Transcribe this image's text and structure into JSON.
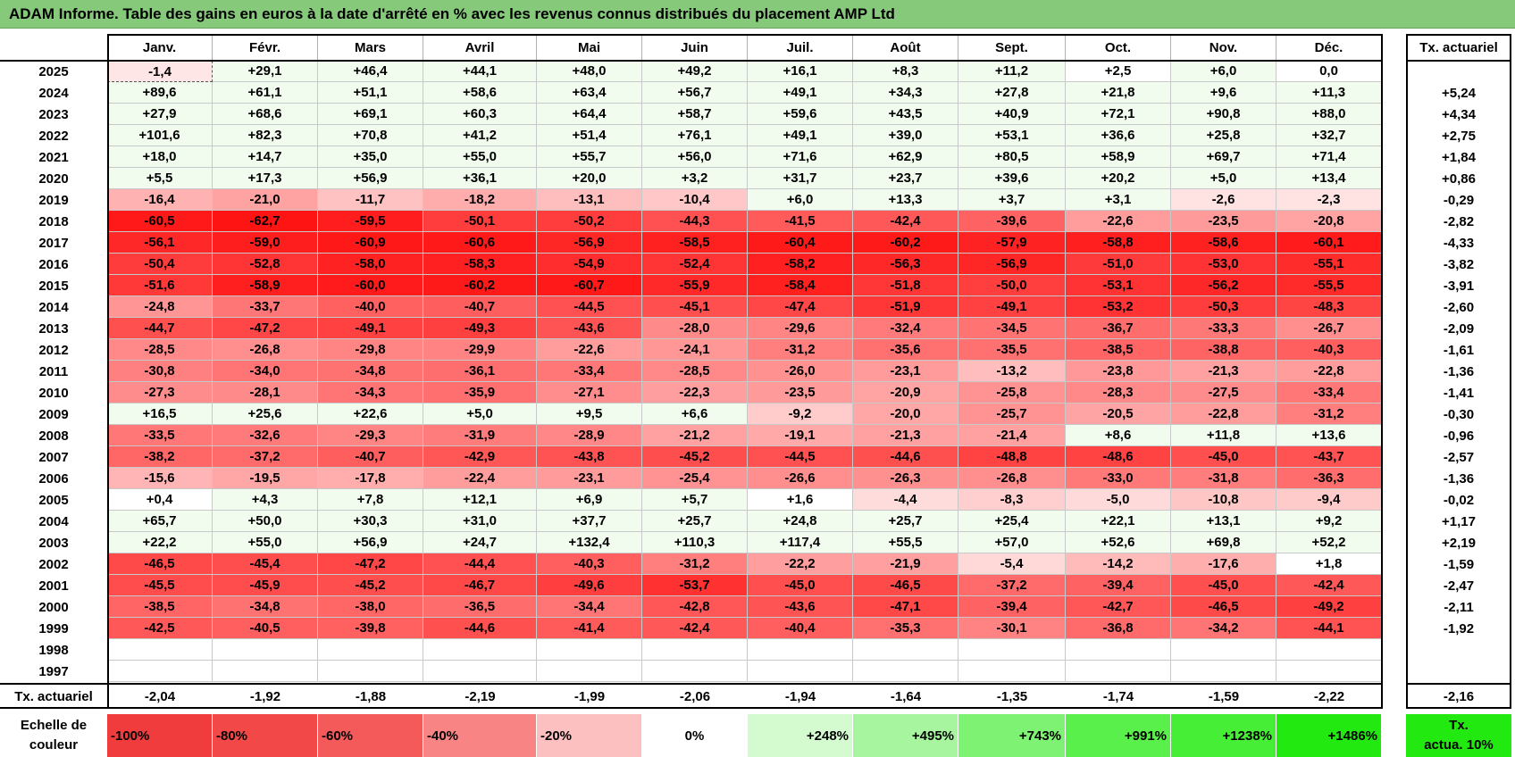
{
  "title": "ADAM Informe. Table des gains en euros à la date d'arrêté en % avec les revenus connus distribués du placement AMP Ltd",
  "months": [
    "Janv.",
    "Févr.",
    "Mars",
    "Avril",
    "Mai",
    "Juin",
    "Juil.",
    "Août",
    "Sept.",
    "Oct.",
    "Nov.",
    "Déc."
  ],
  "annual_header": "Tx. actuariel",
  "rows": [
    {
      "year": "2025",
      "values": [
        "-1,4",
        "+29,1",
        "+46,4",
        "+44,1",
        "+48,0",
        "+49,2",
        "+16,1",
        "+8,3",
        "+11,2",
        "+2,5",
        "+6,0",
        "0,0"
      ],
      "annual": ""
    },
    {
      "year": "2024",
      "values": [
        "+89,6",
        "+61,1",
        "+51,1",
        "+58,6",
        "+63,4",
        "+56,7",
        "+49,1",
        "+34,3",
        "+27,8",
        "+21,8",
        "+9,6",
        "+11,3"
      ],
      "annual": "+5,24"
    },
    {
      "year": "2023",
      "values": [
        "+27,9",
        "+68,6",
        "+69,1",
        "+60,3",
        "+64,4",
        "+58,7",
        "+59,6",
        "+43,5",
        "+40,9",
        "+72,1",
        "+90,8",
        "+88,0"
      ],
      "annual": "+4,34"
    },
    {
      "year": "2022",
      "values": [
        "+101,6",
        "+82,3",
        "+70,8",
        "+41,2",
        "+51,4",
        "+76,1",
        "+49,1",
        "+39,0",
        "+53,1",
        "+36,6",
        "+25,8",
        "+32,7"
      ],
      "annual": "+2,75"
    },
    {
      "year": "2021",
      "values": [
        "+18,0",
        "+14,7",
        "+35,0",
        "+55,0",
        "+55,7",
        "+56,0",
        "+71,6",
        "+62,9",
        "+80,5",
        "+58,9",
        "+69,7",
        "+71,4"
      ],
      "annual": "+1,84"
    },
    {
      "year": "2020",
      "values": [
        "+5,5",
        "+17,3",
        "+56,9",
        "+36,1",
        "+20,0",
        "+3,2",
        "+31,7",
        "+23,7",
        "+39,6",
        "+20,2",
        "+5,0",
        "+13,4"
      ],
      "annual": "+0,86"
    },
    {
      "year": "2019",
      "values": [
        "-16,4",
        "-21,0",
        "-11,7",
        "-18,2",
        "-13,1",
        "-10,4",
        "+6,0",
        "+13,3",
        "+3,7",
        "+3,1",
        "-2,6",
        "-2,3"
      ],
      "annual": "-0,29"
    },
    {
      "year": "2018",
      "values": [
        "-60,5",
        "-62,7",
        "-59,5",
        "-50,1",
        "-50,2",
        "-44,3",
        "-41,5",
        "-42,4",
        "-39,6",
        "-22,6",
        "-23,5",
        "-20,8"
      ],
      "annual": "-2,82"
    },
    {
      "year": "2017",
      "values": [
        "-56,1",
        "-59,0",
        "-60,9",
        "-60,6",
        "-56,9",
        "-58,5",
        "-60,4",
        "-60,2",
        "-57,9",
        "-58,8",
        "-58,6",
        "-60,1"
      ],
      "annual": "-4,33"
    },
    {
      "year": "2016",
      "values": [
        "-50,4",
        "-52,8",
        "-58,0",
        "-58,3",
        "-54,9",
        "-52,4",
        "-58,2",
        "-56,3",
        "-56,9",
        "-51,0",
        "-53,0",
        "-55,1"
      ],
      "annual": "-3,82"
    },
    {
      "year": "2015",
      "values": [
        "-51,6",
        "-58,9",
        "-60,0",
        "-60,2",
        "-60,7",
        "-55,9",
        "-58,4",
        "-51,8",
        "-50,0",
        "-53,1",
        "-56,2",
        "-55,5"
      ],
      "annual": "-3,91"
    },
    {
      "year": "2014",
      "values": [
        "-24,8",
        "-33,7",
        "-40,0",
        "-40,7",
        "-44,5",
        "-45,1",
        "-47,4",
        "-51,9",
        "-49,1",
        "-53,2",
        "-50,3",
        "-48,3"
      ],
      "annual": "-2,60"
    },
    {
      "year": "2013",
      "values": [
        "-44,7",
        "-47,2",
        "-49,1",
        "-49,3",
        "-43,6",
        "-28,0",
        "-29,6",
        "-32,4",
        "-34,5",
        "-36,7",
        "-33,3",
        "-26,7"
      ],
      "annual": "-2,09"
    },
    {
      "year": "2012",
      "values": [
        "-28,5",
        "-26,8",
        "-29,8",
        "-29,9",
        "-22,6",
        "-24,1",
        "-31,2",
        "-35,6",
        "-35,5",
        "-38,5",
        "-38,8",
        "-40,3"
      ],
      "annual": "-1,61"
    },
    {
      "year": "2011",
      "values": [
        "-30,8",
        "-34,0",
        "-34,8",
        "-36,1",
        "-33,4",
        "-28,5",
        "-26,0",
        "-23,1",
        "-13,2",
        "-23,8",
        "-21,3",
        "-22,8"
      ],
      "annual": "-1,36"
    },
    {
      "year": "2010",
      "values": [
        "-27,3",
        "-28,1",
        "-34,3",
        "-35,9",
        "-27,1",
        "-22,3",
        "-23,5",
        "-20,9",
        "-25,8",
        "-28,3",
        "-27,5",
        "-33,4"
      ],
      "annual": "-1,41"
    },
    {
      "year": "2009",
      "values": [
        "+16,5",
        "+25,6",
        "+22,6",
        "+5,0",
        "+9,5",
        "+6,6",
        "-9,2",
        "-20,0",
        "-25,7",
        "-20,5",
        "-22,8",
        "-31,2"
      ],
      "annual": "-0,30"
    },
    {
      "year": "2008",
      "values": [
        "-33,5",
        "-32,6",
        "-29,3",
        "-31,9",
        "-28,9",
        "-21,2",
        "-19,1",
        "-21,3",
        "-21,4",
        "+8,6",
        "+11,8",
        "+13,6"
      ],
      "annual": "-0,96"
    },
    {
      "year": "2007",
      "values": [
        "-38,2",
        "-37,2",
        "-40,7",
        "-42,9",
        "-43,8",
        "-45,2",
        "-44,5",
        "-44,6",
        "-48,8",
        "-48,6",
        "-45,0",
        "-43,7"
      ],
      "annual": "-2,57"
    },
    {
      "year": "2006",
      "values": [
        "-15,6",
        "-19,5",
        "-17,8",
        "-22,4",
        "-23,1",
        "-25,4",
        "-26,6",
        "-26,3",
        "-26,8",
        "-33,0",
        "-31,8",
        "-36,3"
      ],
      "annual": "-1,36"
    },
    {
      "year": "2005",
      "values": [
        "+0,4",
        "+4,3",
        "+7,8",
        "+12,1",
        "+6,9",
        "+5,7",
        "+1,6",
        "-4,4",
        "-8,3",
        "-5,0",
        "-10,8",
        "-9,4"
      ],
      "annual": "-0,02"
    },
    {
      "year": "2004",
      "values": [
        "+65,7",
        "+50,0",
        "+30,3",
        "+31,0",
        "+37,7",
        "+25,7",
        "+24,8",
        "+25,7",
        "+25,4",
        "+22,1",
        "+13,1",
        "+9,2"
      ],
      "annual": "+1,17"
    },
    {
      "year": "2003",
      "values": [
        "+22,2",
        "+55,0",
        "+56,9",
        "+24,7",
        "+132,4",
        "+110,3",
        "+117,4",
        "+55,5",
        "+57,0",
        "+52,6",
        "+69,8",
        "+52,2"
      ],
      "annual": "+2,19"
    },
    {
      "year": "2002",
      "values": [
        "-46,5",
        "-45,4",
        "-47,2",
        "-44,4",
        "-40,3",
        "-31,2",
        "-22,2",
        "-21,9",
        "-5,4",
        "-14,2",
        "-17,6",
        "+1,8"
      ],
      "annual": "-1,59"
    },
    {
      "year": "2001",
      "values": [
        "-45,5",
        "-45,9",
        "-45,2",
        "-46,7",
        "-49,6",
        "-53,7",
        "-45,0",
        "-46,5",
        "-37,2",
        "-39,4",
        "-45,0",
        "-42,4"
      ],
      "annual": "-2,47"
    },
    {
      "year": "2000",
      "values": [
        "-38,5",
        "-34,8",
        "-38,0",
        "-36,5",
        "-34,4",
        "-42,8",
        "-43,6",
        "-47,1",
        "-39,4",
        "-42,7",
        "-46,5",
        "-49,2"
      ],
      "annual": "-2,11"
    },
    {
      "year": "1999",
      "values": [
        "-42,5",
        "-40,5",
        "-39,8",
        "-44,6",
        "-41,4",
        "-42,4",
        "-40,4",
        "-35,3",
        "-30,1",
        "-36,8",
        "-34,2",
        "-44,1"
      ],
      "annual": "-1,92"
    },
    {
      "year": "1998",
      "values": [
        "",
        "",
        "",
        "",
        "",
        "",
        "",
        "",
        "",
        "",
        "",
        ""
      ],
      "annual": ""
    },
    {
      "year": "1997",
      "values": [
        "",
        "",
        "",
        "",
        "",
        "",
        "",
        "",
        "",
        "",
        "",
        ""
      ],
      "annual": ""
    }
  ],
  "footer": {
    "label": "Tx. actuariel",
    "values": [
      "-2,04",
      "-1,92",
      "-1,88",
      "-2,19",
      "-1,99",
      "-2,06",
      "-1,94",
      "-1,64",
      "-1,35",
      "-1,74",
      "-1,59",
      "-2,22"
    ],
    "annual": "-2,16"
  },
  "scale": {
    "label_line1": "Echelle de",
    "label_line2": "couleur",
    "items": [
      {
        "text": "-100%",
        "color": "#f03c3c",
        "align": "left"
      },
      {
        "text": "-80%",
        "color": "#f24848",
        "align": "left"
      },
      {
        "text": "-60%",
        "color": "#f55a5a",
        "align": "left"
      },
      {
        "text": "-40%",
        "color": "#f88484",
        "align": "left"
      },
      {
        "text": "-20%",
        "color": "#fcc0c0",
        "align": "left"
      },
      {
        "text": "0%",
        "color": "#ffffff",
        "align": "center"
      },
      {
        "text": "+248%",
        "color": "#d4fad0",
        "align": "right"
      },
      {
        "text": "+495%",
        "color": "#a8f5a0",
        "align": "right"
      },
      {
        "text": "+743%",
        "color": "#7ef272",
        "align": "right"
      },
      {
        "text": "+991%",
        "color": "#5af04c",
        "align": "right"
      },
      {
        "text": "+1238%",
        "color": "#46ee36",
        "align": "right"
      },
      {
        "text": "+1486%",
        "color": "#22ea10",
        "align": "right"
      }
    ],
    "annual_line1": "Tx.",
    "annual_line2": "actua. 10%",
    "annual_color": "#22ea10"
  },
  "colors": {
    "title_bg": "#86c97a",
    "neg_strong": "#ff1a1a",
    "pos_tint": "#f2fcee"
  }
}
